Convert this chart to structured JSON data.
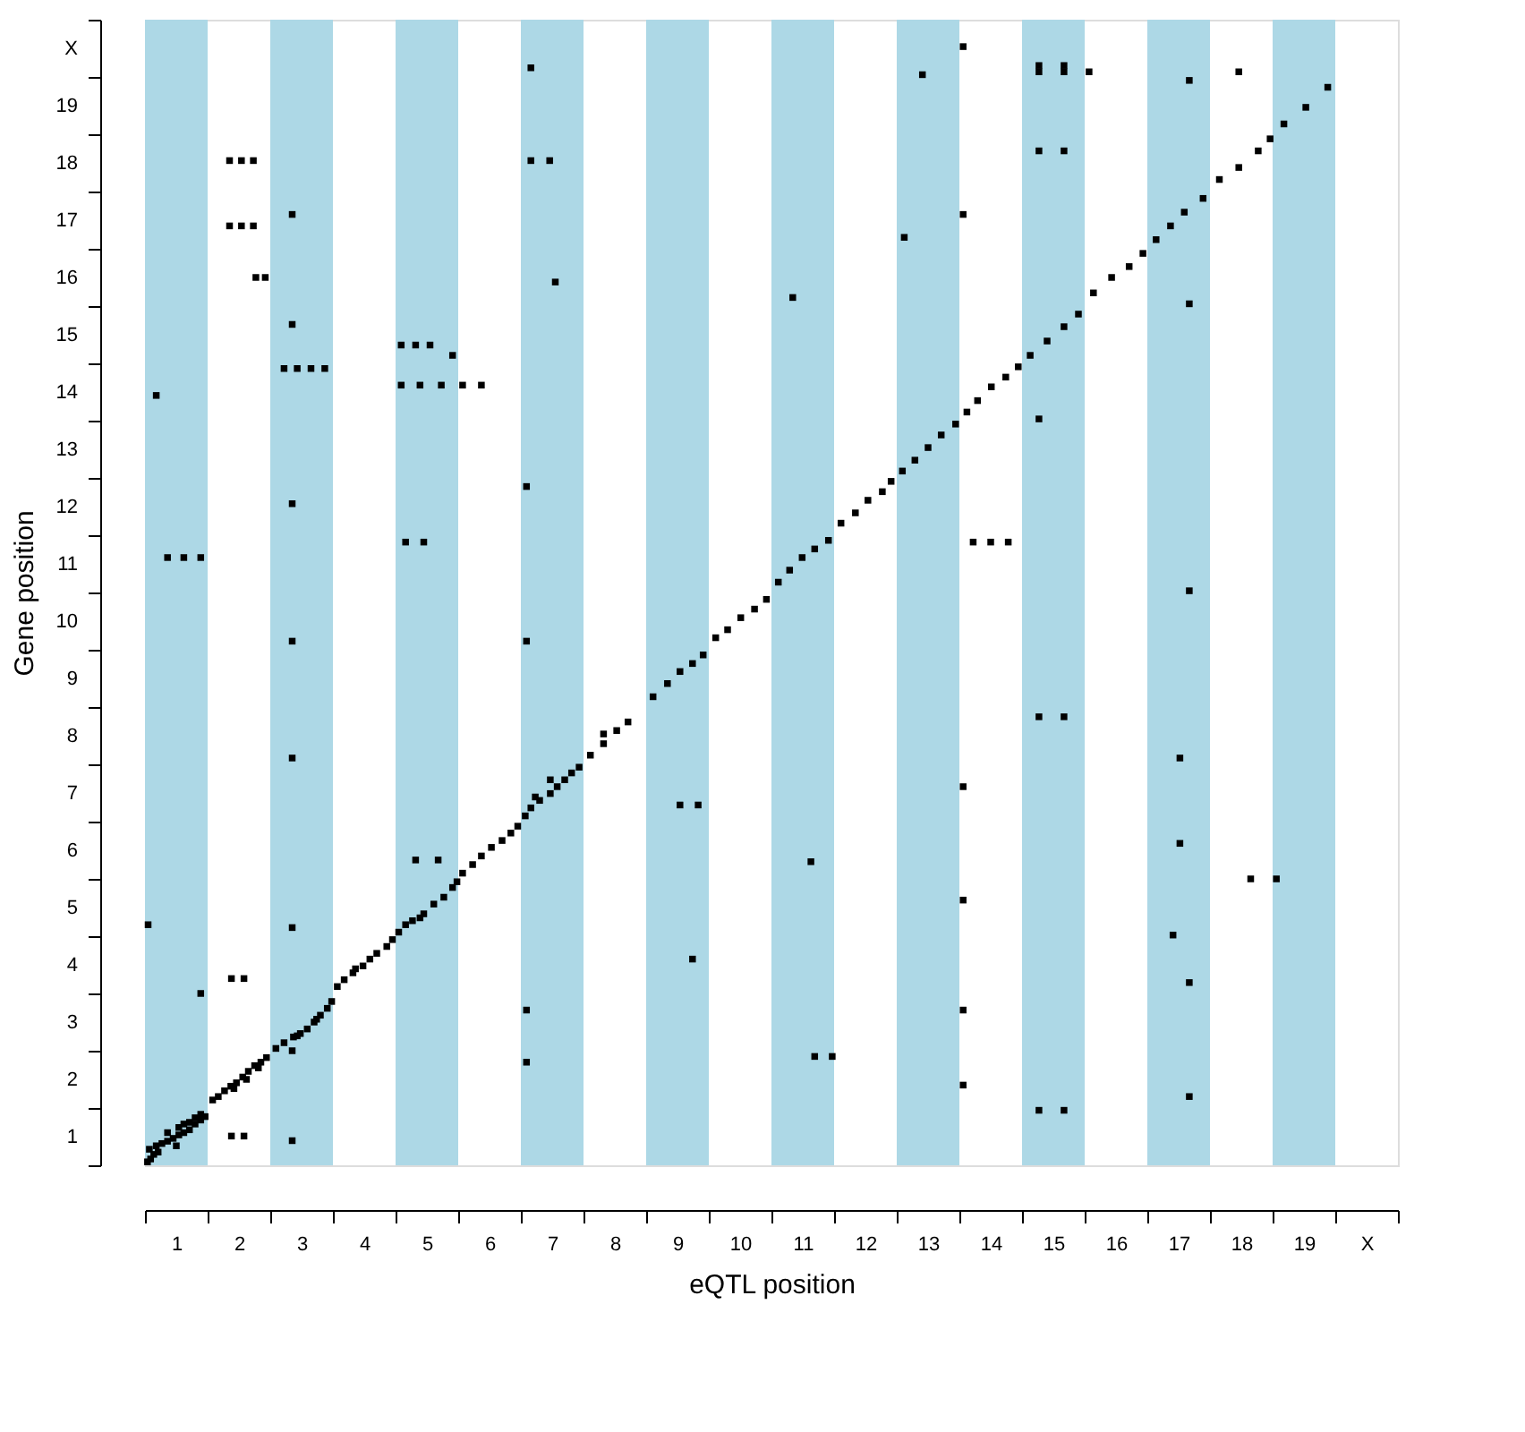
{
  "chart_data": {
    "type": "scatter",
    "xlabel": "eQTL position",
    "ylabel": "Gene position",
    "marker": "square",
    "grid": false,
    "xlim": [
      0.5,
      20.5
    ],
    "ylim": [
      0.5,
      20.5
    ],
    "xticks": [
      {
        "value": 0.5,
        "label": null
      },
      {
        "value": 1.5,
        "label": null
      },
      {
        "value": 2.5,
        "label": null
      },
      {
        "value": 3.5,
        "label": null
      },
      {
        "value": 4.5,
        "label": null
      },
      {
        "value": 5.5,
        "label": null
      },
      {
        "value": 6.5,
        "label": null
      },
      {
        "value": 7.5,
        "label": null
      },
      {
        "value": 8.5,
        "label": null
      },
      {
        "value": 9.5,
        "label": null
      },
      {
        "value": 10.5,
        "label": null
      },
      {
        "value": 11.5,
        "label": null
      },
      {
        "value": 12.5,
        "label": null
      },
      {
        "value": 13.5,
        "label": null
      },
      {
        "value": 14.5,
        "label": null
      },
      {
        "value": 15.5,
        "label": null
      },
      {
        "value": 16.5,
        "label": null
      },
      {
        "value": 17.5,
        "label": null
      },
      {
        "value": 18.5,
        "label": null
      },
      {
        "value": 19.5,
        "label": null
      },
      {
        "value": 20.5,
        "label": null
      },
      1,
      2,
      3,
      4,
      5,
      6,
      7,
      8,
      9,
      10,
      11,
      12,
      13,
      14,
      15,
      16,
      17,
      18,
      19,
      {
        "value": 20,
        "label": "X"
      }
    ],
    "yticks": [
      {
        "value": 0.5,
        "label": null
      },
      {
        "value": 1.5,
        "label": null
      },
      {
        "value": 2.5,
        "label": null
      },
      {
        "value": 3.5,
        "label": null
      },
      {
        "value": 4.5,
        "label": null
      },
      {
        "value": 5.5,
        "label": null
      },
      {
        "value": 6.5,
        "label": null
      },
      {
        "value": 7.5,
        "label": null
      },
      {
        "value": 8.5,
        "label": null
      },
      {
        "value": 9.5,
        "label": null
      },
      {
        "value": 10.5,
        "label": null
      },
      {
        "value": 11.5,
        "label": null
      },
      {
        "value": 12.5,
        "label": null
      },
      {
        "value": 13.5,
        "label": null
      },
      {
        "value": 14.5,
        "label": null
      },
      {
        "value": 15.5,
        "label": null
      },
      {
        "value": 16.5,
        "label": null
      },
      {
        "value": 17.5,
        "label": null
      },
      {
        "value": 18.5,
        "label": null
      },
      {
        "value": 19.5,
        "label": null
      },
      {
        "value": 20.5,
        "label": null
      },
      1,
      2,
      3,
      4,
      5,
      6,
      7,
      8,
      9,
      10,
      11,
      12,
      13,
      14,
      15,
      16,
      17,
      18,
      19,
      {
        "value": 20,
        "label": "X"
      }
    ],
    "bands": [
      {
        "axis": "x",
        "from": 0.5,
        "to": 1.5,
        "color": "#add8e6"
      },
      {
        "axis": "x",
        "from": 2.5,
        "to": 3.5,
        "color": "#add8e6"
      },
      {
        "axis": "x",
        "from": 4.5,
        "to": 5.5,
        "color": "#add8e6"
      },
      {
        "axis": "x",
        "from": 6.5,
        "to": 7.5,
        "color": "#add8e6"
      },
      {
        "axis": "x",
        "from": 8.5,
        "to": 9.5,
        "color": "#add8e6"
      },
      {
        "axis": "x",
        "from": 10.5,
        "to": 11.5,
        "color": "#add8e6"
      },
      {
        "axis": "x",
        "from": 12.5,
        "to": 13.5,
        "color": "#add8e6"
      },
      {
        "axis": "x",
        "from": 14.5,
        "to": 15.5,
        "color": "#add8e6"
      },
      {
        "axis": "x",
        "from": 16.5,
        "to": 17.5,
        "color": "#add8e6"
      },
      {
        "axis": "x",
        "from": 18.5,
        "to": 19.5,
        "color": "#add8e6"
      }
    ],
    "series": [
      {
        "color": "#000000",
        "x": [
          0.54,
          0.59,
          0.64,
          0.57,
          0.68,
          0.77,
          0.86,
          0.95,
          1.04,
          1.12,
          1.21,
          1.3,
          1.39,
          1.46,
          1.04,
          1.12,
          1.21,
          1.3,
          1.39,
          0.86,
          0.71,
          1.0,
          1.58,
          1.67,
          1.77,
          1.87,
          1.96,
          2.06,
          2.15,
          2.25,
          2.35,
          2.44,
          1.92,
          2.12,
          2.31,
          2.59,
          2.72,
          2.87,
          2.98,
          3.09,
          3.2,
          3.3,
          3.41,
          3.48,
          2.93,
          3.24,
          3.57,
          3.68,
          3.82,
          3.98,
          4.09,
          4.2,
          4.36,
          4.45,
          3.86,
          4.55,
          4.66,
          4.77,
          4.95,
          5.11,
          5.27,
          5.41,
          5.48,
          4.89,
          5.57,
          5.73,
          5.87,
          6.03,
          6.2,
          6.34,
          6.45,
          6.57,
          6.66,
          6.8,
          6.97,
          7.08,
          7.2,
          7.31,
          7.43,
          6.73,
          6.97,
          7.61,
          7.82,
          8.03,
          8.21,
          7.82,
          8.61,
          8.84,
          9.04,
          9.24,
          9.41,
          9.61,
          9.8,
          10.01,
          10.23,
          10.42,
          10.61,
          10.79,
          10.99,
          11.19,
          11.41,
          11.61,
          11.84,
          12.04,
          12.27,
          12.41,
          12.59,
          12.79,
          13.0,
          13.21,
          13.44,
          13.62,
          13.79,
          14.01,
          14.24,
          14.44,
          14.63,
          14.9,
          15.17,
          15.4,
          15.64,
          15.93,
          16.21,
          16.43,
          16.64,
          16.87,
          17.09,
          17.39,
          17.65,
          17.96,
          18.27,
          18.46,
          18.68,
          19.03,
          19.38,
          1.85,
          2.04,
          2.23,
          1.85,
          2.04,
          2.23,
          2.27,
          2.42,
          1.88,
          2.08,
          1.88,
          2.08,
          2.72,
          2.93,
          3.15,
          3.37,
          4.59,
          4.82,
          5.05,
          4.59,
          4.89,
          5.23,
          5.57,
          5.87,
          4.66,
          4.95,
          4.82,
          5.18,
          5.41,
          6.66,
          6.96,
          6.66,
          7.05,
          0.86,
          1.12,
          1.39,
          0.68,
          0.55,
          1.39,
          14.77,
          15.17,
          14.77,
          15.17,
          15.57,
          14.77,
          15.17,
          14.77,
          15.17,
          14.77,
          14.77,
          15.17,
          12.91,
          12.62,
          13.72,
          14.0,
          14.28,
          17.02,
          17.02,
          16.91,
          11.19,
          11.47,
          11.13,
          10.84,
          9.04,
          9.33,
          9.24,
          18.15,
          18.56,
          17.96,
          2.85,
          2.85,
          2.85,
          2.85,
          2.85,
          2.85,
          2.85,
          2.85,
          6.59,
          6.59,
          6.59,
          6.59,
          13.56,
          13.56,
          13.56,
          13.56,
          13.56,
          13.56,
          17.17,
          17.17,
          17.17,
          17.17,
          17.17
        ],
        "values": [
          0.56,
          0.61,
          0.69,
          0.78,
          0.84,
          0.88,
          0.92,
          0.97,
          1.03,
          1.07,
          1.12,
          1.22,
          1.29,
          1.35,
          1.16,
          1.22,
          1.25,
          1.33,
          1.39,
          1.07,
          0.73,
          0.84,
          1.64,
          1.7,
          1.8,
          1.88,
          1.94,
          2.04,
          2.14,
          2.24,
          2.3,
          2.38,
          1.84,
          2.0,
          2.2,
          2.54,
          2.64,
          2.74,
          2.8,
          2.88,
          3.0,
          3.12,
          3.24,
          3.36,
          2.76,
          3.05,
          3.62,
          3.74,
          3.86,
          3.98,
          4.1,
          4.2,
          4.32,
          4.44,
          3.93,
          4.57,
          4.7,
          4.77,
          4.89,
          5.06,
          5.18,
          5.35,
          5.45,
          4.82,
          5.6,
          5.75,
          5.9,
          6.05,
          6.17,
          6.3,
          6.42,
          6.6,
          6.74,
          6.87,
          6.99,
          7.11,
          7.23,
          7.35,
          7.45,
          6.93,
          7.23,
          7.66,
          7.86,
          8.09,
          8.24,
          8.03,
          8.68,
          8.91,
          9.12,
          9.26,
          9.41,
          9.71,
          9.85,
          10.06,
          10.21,
          10.38,
          10.68,
          10.89,
          11.11,
          11.26,
          11.41,
          11.71,
          11.89,
          12.11,
          12.26,
          12.44,
          12.62,
          12.81,
          13.03,
          13.25,
          13.44,
          13.65,
          13.85,
          14.09,
          14.26,
          14.44,
          14.64,
          14.89,
          15.14,
          15.36,
          15.73,
          16.0,
          16.19,
          16.42,
          16.66,
          16.9,
          17.14,
          17.38,
          17.71,
          17.92,
          18.21,
          18.42,
          18.68,
          18.97,
          19.32,
          18.04,
          18.04,
          18.04,
          16.9,
          16.9,
          16.9,
          16.0,
          16.0,
          1.01,
          1.01,
          3.76,
          3.76,
          14.41,
          14.41,
          14.41,
          14.41,
          14.82,
          14.82,
          14.82,
          14.12,
          14.12,
          14.12,
          14.12,
          14.12,
          11.38,
          11.38,
          5.83,
          5.83,
          14.64,
          18.04,
          18.04,
          19.66,
          15.92,
          11.11,
          11.11,
          11.11,
          13.94,
          4.7,
          3.5,
          19.7,
          19.7,
          19.59,
          19.59,
          19.59,
          18.21,
          18.21,
          8.33,
          8.33,
          13.53,
          1.46,
          1.46,
          19.54,
          16.7,
          11.38,
          11.38,
          11.38,
          7.61,
          6.12,
          4.52,
          2.4,
          2.4,
          5.8,
          15.65,
          6.79,
          6.79,
          4.1,
          5.5,
          5.5,
          19.59,
          17.1,
          15.18,
          12.05,
          9.65,
          7.61,
          4.65,
          2.5,
          0.93,
          12.35,
          9.65,
          3.21,
          2.3,
          20.03,
          17.1,
          7.11,
          5.13,
          3.21,
          1.9,
          19.44,
          15.54,
          10.53,
          3.69,
          1.7
        ]
      }
    ]
  }
}
